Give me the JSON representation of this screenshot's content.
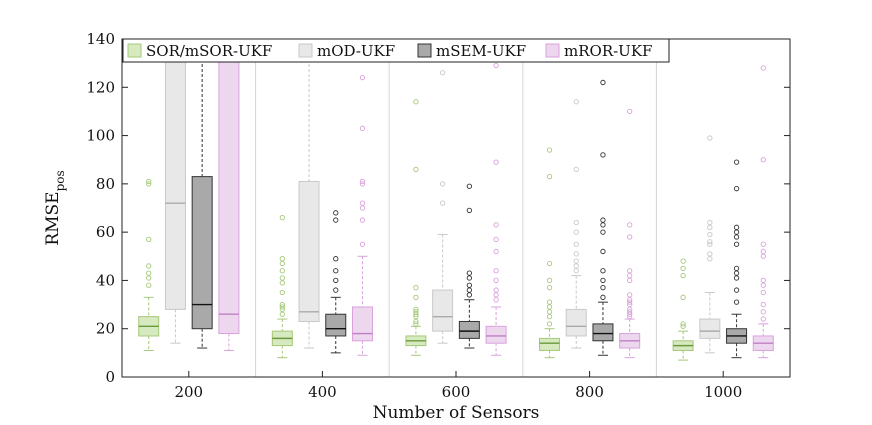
{
  "chart_data": {
    "type": "boxplot",
    "title": "",
    "xlabel": "Number of Sensors",
    "ylabel_main": "RMSE",
    "ylabel_sub": "pos",
    "ylim": [
      0,
      140
    ],
    "yticks": [
      0,
      20,
      40,
      60,
      80,
      100,
      120,
      140
    ],
    "categories": [
      "200",
      "400",
      "600",
      "800",
      "1000"
    ],
    "legend_position": "top",
    "series": [
      {
        "name": "SOR/mSOR-UKF",
        "color": "#a5c97a",
        "fill": "#d7e9bf",
        "median_color": "#6b9a3c",
        "boxes": [
          {
            "whisker_low": 11,
            "q1": 17,
            "median": 21,
            "q3": 25,
            "whisker_high": 33,
            "outliers": [
              38,
              41,
              43,
              46,
              57,
              80,
              81
            ]
          },
          {
            "whisker_low": 8,
            "q1": 13,
            "median": 16,
            "q3": 19,
            "whisker_high": 24,
            "outliers": [
              26,
              28,
              29,
              30,
              35,
              39,
              41,
              44,
              47,
              49,
              66
            ]
          },
          {
            "whisker_low": 9,
            "q1": 13,
            "median": 15,
            "q3": 17,
            "whisker_high": 21,
            "outliers": [
              22,
              23,
              25,
              26,
              27,
              28,
              33,
              37,
              86,
              114
            ]
          },
          {
            "whisker_low": 8,
            "q1": 11,
            "median": 14,
            "q3": 16,
            "whisker_high": 20,
            "outliers": [
              22,
              25,
              27,
              29,
              31,
              37,
              40,
              47,
              83,
              94
            ]
          },
          {
            "whisker_low": 7,
            "q1": 11,
            "median": 13,
            "q3": 15,
            "whisker_high": 19,
            "outliers": [
              21,
              22,
              33,
              42,
              45,
              48
            ]
          }
        ]
      },
      {
        "name": "mOD-UKF",
        "color": "#c9c9c9",
        "fill": "#e8e8e8",
        "median_color": "#aaaaaa",
        "boxes": [
          {
            "whisker_low": 14,
            "q1": 28,
            "median": 72,
            "q3": 140,
            "whisker_high": 140,
            "outliers": []
          },
          {
            "whisker_low": 12,
            "q1": 23,
            "median": 27,
            "q3": 81,
            "whisker_high": 140,
            "outliers": []
          },
          {
            "whisker_low": 14,
            "q1": 19,
            "median": 25,
            "q3": 36,
            "whisker_high": 59,
            "outliers": [
              72,
              80,
              126
            ]
          },
          {
            "whisker_low": 12,
            "q1": 17,
            "median": 21,
            "q3": 28,
            "whisker_high": 42,
            "outliers": [
              44,
              46,
              48,
              51,
              55,
              60,
              64,
              86,
              114
            ]
          },
          {
            "whisker_low": 10,
            "q1": 16,
            "median": 19,
            "q3": 24,
            "whisker_high": 35,
            "outliers": [
              49,
              51,
              55,
              56,
              59,
              62,
              64,
              99
            ]
          }
        ]
      },
      {
        "name": "mSEM-UKF",
        "color": "#333333",
        "fill": "#a9a9a9",
        "median_color": "#111111",
        "boxes": [
          {
            "whisker_low": 12,
            "q1": 20,
            "median": 30,
            "q3": 83,
            "whisker_high": 140,
            "outliers": []
          },
          {
            "whisker_low": 10,
            "q1": 17,
            "median": 20,
            "q3": 26,
            "whisker_high": 33,
            "outliers": [
              36,
              40,
              44,
              49,
              65,
              68
            ]
          },
          {
            "whisker_low": 12,
            "q1": 16,
            "median": 19,
            "q3": 23,
            "whisker_high": 32,
            "outliers": [
              34,
              36,
              38,
              41,
              43,
              69,
              79
            ]
          },
          {
            "whisker_low": 9,
            "q1": 15,
            "median": 18,
            "q3": 22,
            "whisker_high": 31,
            "outliers": [
              33,
              37,
              40,
              44,
              52,
              60,
              63,
              65,
              92,
              122
            ]
          },
          {
            "whisker_low": 8,
            "q1": 14,
            "median": 17,
            "q3": 20,
            "whisker_high": 26,
            "outliers": [
              31,
              36,
              41,
              43,
              45,
              55,
              58,
              60,
              62,
              78,
              89
            ]
          }
        ]
      },
      {
        "name": "mROR-UKF",
        "color": "#d9a2dc",
        "fill": "#edd7ee",
        "median_color": "#c07fc4",
        "boxes": [
          {
            "whisker_low": 11,
            "q1": 18,
            "median": 26,
            "q3": 140,
            "whisker_high": 140,
            "outliers": []
          },
          {
            "whisker_low": 9,
            "q1": 15,
            "median": 18,
            "q3": 29,
            "whisker_high": 50,
            "outliers": [
              55,
              65,
              70,
              72,
              80,
              81,
              103,
              124
            ]
          },
          {
            "whisker_low": 9,
            "q1": 14,
            "median": 17,
            "q3": 21,
            "whisker_high": 29,
            "outliers": [
              32,
              34,
              36,
              40,
              44,
              52,
              57,
              63,
              89,
              129
            ]
          },
          {
            "whisker_low": 8,
            "q1": 12,
            "median": 15,
            "q3": 18,
            "whisker_high": 24,
            "outliers": [
              25,
              26,
              27,
              28,
              30,
              31,
              32,
              34,
              40,
              42,
              44,
              58,
              63,
              110
            ]
          },
          {
            "whisker_low": 8,
            "q1": 11,
            "median": 14,
            "q3": 17,
            "whisker_high": 22,
            "outliers": [
              24,
              27,
              30,
              35,
              38,
              40,
              50,
              52,
              55,
              90,
              128
            ]
          }
        ]
      }
    ]
  }
}
